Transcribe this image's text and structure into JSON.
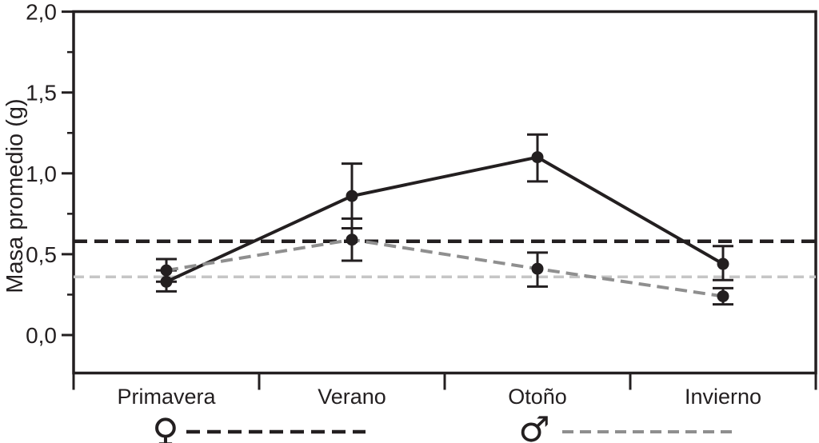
{
  "chart_data": {
    "type": "line",
    "title": "",
    "ylabel": "Masa promedio (g)",
    "xlabel": "",
    "ylim": [
      0,
      2.0
    ],
    "yticks_labels": [
      "0,0",
      "0,5",
      "1,0",
      "1,5",
      "2,0"
    ],
    "yticks_values": [
      0,
      0.5,
      1.0,
      1.5,
      2.0
    ],
    "yticks_minor": [
      0.25,
      0.75,
      1.25,
      1.75
    ],
    "decimal_separator": ",",
    "categories": [
      "Primavera",
      "Verano",
      "Otoño",
      "Invierno"
    ],
    "grid": false,
    "legend_position": "bottom",
    "marker": "filled-circle",
    "marker_color": "#231f20",
    "error_bar_color": "#231f20",
    "series": [
      {
        "name": "hembras",
        "legend_symbol": "♀",
        "line_style": "solid",
        "color": "#231f20",
        "values": [
          0.33,
          0.86,
          1.1,
          0.44
        ],
        "error_low": [
          0.27,
          0.66,
          0.95,
          0.34
        ],
        "error_high": [
          0.4,
          1.06,
          1.24,
          0.55
        ]
      },
      {
        "name": "machos",
        "legend_symbol": "♂",
        "line_style": "dashed",
        "color": "#8f8f8f",
        "values": [
          0.4,
          0.59,
          0.41,
          0.24
        ],
        "error_low": [
          0.33,
          0.46,
          0.3,
          0.19
        ],
        "error_high": [
          0.47,
          0.72,
          0.51,
          0.29
        ]
      }
    ],
    "reference_lines": [
      {
        "series": "hembras",
        "symbol": "♀",
        "value": 0.58,
        "color": "#231f20",
        "style": "dashed"
      },
      {
        "series": "machos",
        "symbol": "♂",
        "value": 0.36,
        "color": "#c6c6c6",
        "style": "dashed"
      }
    ]
  }
}
